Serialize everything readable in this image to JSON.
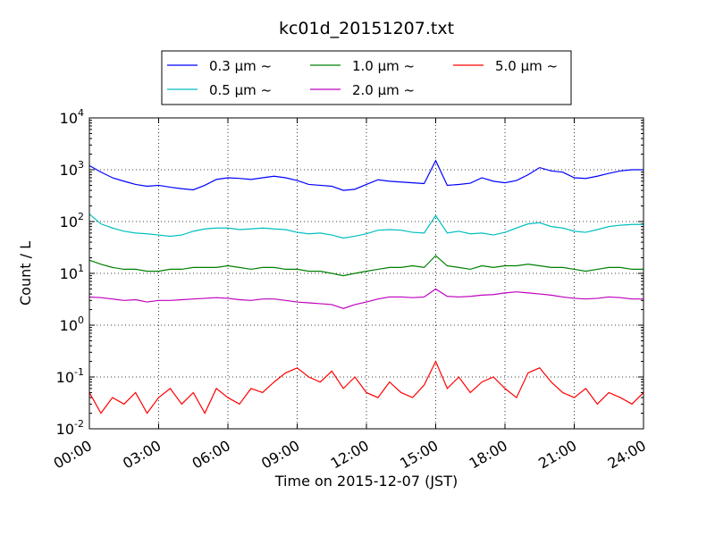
{
  "chart_data": {
    "type": "line",
    "title": "kc01d_20151207.txt",
    "x_label": "Time on 2015-12-07 (JST)",
    "y_label": "Count / L",
    "log_y": true,
    "grid": true,
    "legend": "upper center",
    "xlim": [
      0,
      24
    ],
    "xticks": [
      {
        "value": 0,
        "label": "00:00"
      },
      {
        "value": 3,
        "label": "03:00"
      },
      {
        "value": 6,
        "label": "06:00"
      },
      {
        "value": 9,
        "label": "09:00"
      },
      {
        "value": 12,
        "label": "12:00"
      },
      {
        "value": 15,
        "label": "15:00"
      },
      {
        "value": 18,
        "label": "18:00"
      },
      {
        "value": 21,
        "label": "21:00"
      },
      {
        "value": 24,
        "label": "24:00"
      }
    ],
    "ylim": [
      0.01,
      10000
    ],
    "yticks": [
      {
        "value": 0.01,
        "label": "10",
        "exp": "-2"
      },
      {
        "value": 0.1,
        "label": "10",
        "exp": "-1"
      },
      {
        "value": 1,
        "label": "10",
        "exp": "0"
      },
      {
        "value": 10,
        "label": "10",
        "exp": "1"
      },
      {
        "value": 100,
        "label": "10",
        "exp": "2"
      },
      {
        "value": 1000,
        "label": "10",
        "exp": "3"
      },
      {
        "value": 10000,
        "label": "10",
        "exp": "4"
      }
    ],
    "x": [
      0,
      0.5,
      1,
      1.5,
      2,
      2.5,
      3,
      3.5,
      4,
      4.5,
      5,
      5.5,
      6,
      6.5,
      7,
      7.5,
      8,
      8.5,
      9,
      9.5,
      10,
      10.5,
      11,
      11.5,
      12,
      12.5,
      13,
      13.5,
      14,
      14.5,
      15,
      15.5,
      16,
      16.5,
      17,
      17.5,
      18,
      18.5,
      19,
      19.5,
      20,
      20.5,
      21,
      21.5,
      22,
      22.5,
      23,
      23.5,
      24
    ],
    "series": [
      {
        "name": "0.3 μm ~",
        "color": "#0000ff",
        "values": [
          1200,
          900,
          700,
          600,
          520,
          480,
          500,
          460,
          430,
          410,
          500,
          650,
          700,
          680,
          650,
          700,
          750,
          700,
          620,
          520,
          500,
          480,
          400,
          420,
          520,
          640,
          600,
          580,
          560,
          540,
          1500,
          500,
          520,
          550,
          700,
          600,
          560,
          620,
          800,
          1100,
          950,
          900,
          700,
          680,
          750,
          850,
          950,
          1000,
          1000
        ]
      },
      {
        "name": "0.5 μm ~",
        "color": "#00bfbf",
        "values": [
          140,
          90,
          75,
          65,
          60,
          58,
          55,
          52,
          55,
          65,
          72,
          75,
          75,
          70,
          72,
          75,
          72,
          70,
          62,
          58,
          60,
          55,
          48,
          52,
          58,
          68,
          70,
          68,
          62,
          60,
          130,
          60,
          65,
          58,
          60,
          55,
          62,
          75,
          90,
          95,
          80,
          75,
          65,
          62,
          70,
          80,
          85,
          88,
          88
        ]
      },
      {
        "name": "1.0 μm ~",
        "color": "#008000",
        "values": [
          18,
          15,
          13,
          12,
          12,
          11,
          11,
          12,
          12,
          13,
          13,
          13,
          14,
          13,
          12,
          13,
          13,
          12,
          12,
          11,
          11,
          10,
          9,
          10,
          11,
          12,
          13,
          13,
          14,
          13,
          22,
          14,
          13,
          12,
          14,
          13,
          14,
          14,
          15,
          14,
          13,
          13,
          12,
          11,
          12,
          13,
          13,
          12,
          12
        ]
      },
      {
        "name": "2.0 μm ~",
        "color": "#bf00bf",
        "values": [
          3.5,
          3.4,
          3.2,
          3.0,
          3.1,
          2.8,
          3.0,
          3.0,
          3.1,
          3.2,
          3.3,
          3.4,
          3.3,
          3.1,
          3.0,
          3.2,
          3.2,
          3.0,
          2.8,
          2.7,
          2.6,
          2.5,
          2.1,
          2.5,
          2.8,
          3.2,
          3.5,
          3.5,
          3.4,
          3.5,
          5.0,
          3.6,
          3.5,
          3.6,
          3.8,
          3.9,
          4.2,
          4.4,
          4.2,
          4.0,
          3.8,
          3.5,
          3.3,
          3.2,
          3.3,
          3.5,
          3.4,
          3.2,
          3.2
        ]
      },
      {
        "name": "5.0 μm ~",
        "color": "#ff0000",
        "values": [
          0.05,
          0.02,
          0.04,
          0.03,
          0.05,
          0.02,
          0.04,
          0.06,
          0.03,
          0.05,
          0.02,
          0.06,
          0.04,
          0.03,
          0.06,
          0.05,
          0.08,
          0.12,
          0.15,
          0.1,
          0.08,
          0.13,
          0.06,
          0.1,
          0.05,
          0.04,
          0.08,
          0.05,
          0.04,
          0.07,
          0.2,
          0.06,
          0.1,
          0.05,
          0.08,
          0.1,
          0.06,
          0.04,
          0.12,
          0.15,
          0.08,
          0.05,
          0.04,
          0.06,
          0.03,
          0.05,
          0.04,
          0.03,
          0.05
        ]
      }
    ]
  }
}
